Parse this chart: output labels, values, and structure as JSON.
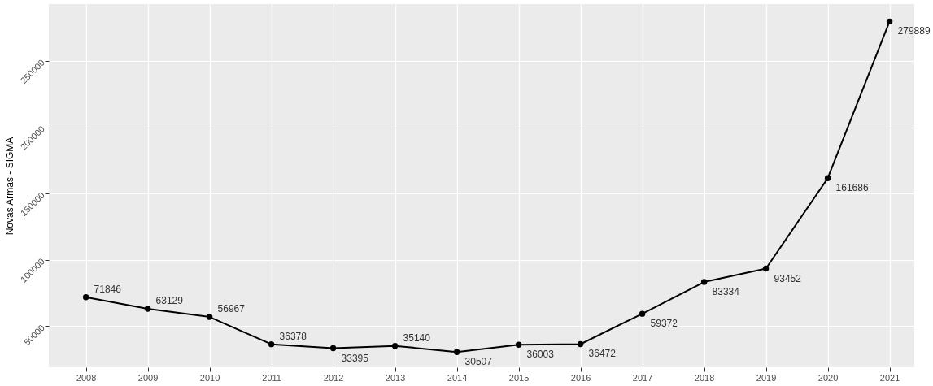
{
  "chart_data": {
    "type": "line",
    "ylabel": "Novas Armas - SIGMA",
    "x": [
      2008,
      2009,
      2010,
      2011,
      2012,
      2013,
      2014,
      2015,
      2016,
      2017,
      2018,
      2019,
      2020,
      2021
    ],
    "series": [
      {
        "color": "#000000",
        "values": [
          71846,
          63129,
          56967,
          36378,
          33395,
          35140,
          30507,
          36003,
          36472,
          59372,
          83334,
          93452,
          161686,
          279889
        ]
      }
    ],
    "xlim": [
      2007.4,
      2021.4
    ],
    "xticks": [
      2008,
      2009,
      2010,
      2011,
      2012,
      2013,
      2014,
      2015,
      2016,
      2017,
      2018,
      2019,
      2020,
      2021
    ],
    "ylim": [
      19000,
      293000
    ],
    "yticks": [
      50000,
      100000,
      150000,
      200000,
      250000
    ],
    "grid": true,
    "marker": "circle",
    "line_style": "solid",
    "data_labels": true
  }
}
